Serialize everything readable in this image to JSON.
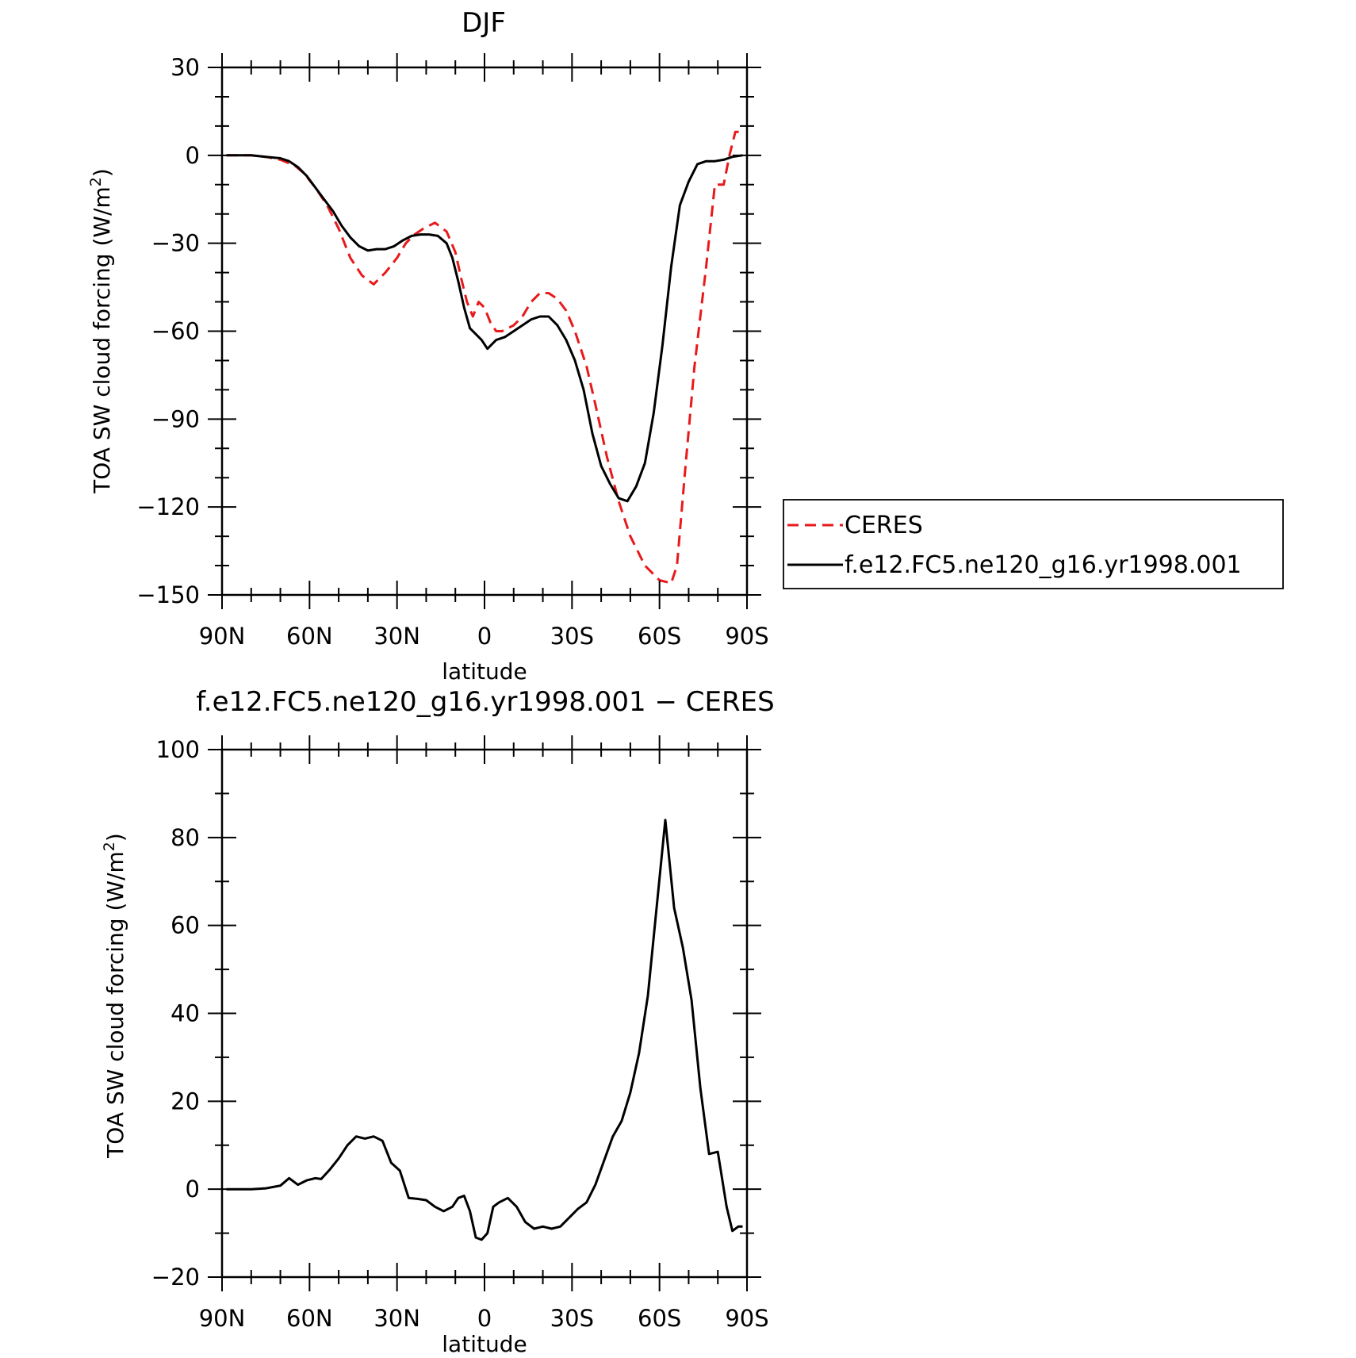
{
  "chart_data": [
    {
      "type": "line",
      "title": "DJF",
      "xlabel": "latitude",
      "ylabel": "TOA SW cloud forcing (W/m",
      "ylabel_superscript": "2",
      "ylabel_close": ")",
      "xlim": [
        90,
        -90
      ],
      "ylim": [
        -150,
        30
      ],
      "x_ticks": [
        {
          "value": 90,
          "label": "90N"
        },
        {
          "value": 60,
          "label": "60N"
        },
        {
          "value": 30,
          "label": "30N"
        },
        {
          "value": 0,
          "label": "0"
        },
        {
          "value": -30,
          "label": "30S"
        },
        {
          "value": -60,
          "label": "60S"
        },
        {
          "value": -90,
          "label": "90S"
        }
      ],
      "y_ticks": [
        {
          "value": 30,
          "label": "30"
        },
        {
          "value": 0,
          "label": "0"
        },
        {
          "value": -30,
          "label": "−30"
        },
        {
          "value": -60,
          "label": "−60"
        },
        {
          "value": -90,
          "label": "−90"
        },
        {
          "value": -120,
          "label": "−120"
        },
        {
          "value": -150,
          "label": "−150"
        }
      ],
      "grid": false,
      "legend_position": "right",
      "series": [
        {
          "name": "CERES",
          "color": "#e8191b",
          "style": "dashed",
          "x": [
            88.5,
            85,
            80,
            75,
            70,
            65,
            62,
            58,
            54,
            50,
            46,
            42,
            38,
            34,
            30,
            27,
            24,
            21,
            17,
            13,
            10,
            8,
            6,
            4,
            2,
            0,
            -2,
            -4,
            -6,
            -8,
            -10,
            -13,
            -16,
            -19,
            -22,
            -25,
            -28,
            -31,
            -35,
            -38,
            -42,
            -46,
            -50,
            -55,
            -60,
            -64,
            -66,
            -69,
            -72,
            -76,
            -79,
            -82,
            -84,
            -86,
            -88.5
          ],
          "y": [
            0,
            0,
            0,
            -0.5,
            -1.5,
            -3.5,
            -6,
            -11,
            -17,
            -25,
            -35,
            -41,
            -44,
            -40,
            -35,
            -30,
            -27,
            -25,
            -23,
            -26,
            -33,
            -42,
            -50,
            -55,
            -50,
            -52,
            -57,
            -60,
            -60,
            -59,
            -58,
            -55,
            -50,
            -47,
            -47,
            -49,
            -53,
            -60,
            -72,
            -85,
            -103,
            -118,
            -130,
            -140,
            -145,
            -146,
            -140,
            -105,
            -72,
            -38,
            -10,
            -10,
            0,
            8,
            8
          ]
        },
        {
          "name": "f.e12.FC5.ne120_g16.yr1998.001",
          "color": "#000000",
          "style": "solid",
          "x": [
            88.5,
            85,
            80,
            75,
            70,
            67,
            64,
            61,
            58,
            55,
            52,
            49,
            46,
            43,
            40,
            37,
            34,
            31,
            28,
            25,
            22,
            19,
            16,
            13,
            11,
            9,
            7,
            5,
            3,
            1,
            -1,
            -4,
            -7,
            -10,
            -13,
            -16,
            -19,
            -22,
            -25,
            -28,
            -31,
            -34,
            -37,
            -40,
            -43,
            -46,
            -49,
            -52,
            -55,
            -58,
            -61,
            -64,
            -67,
            -70,
            -73,
            -76,
            -79,
            -82,
            -85,
            -88.5
          ],
          "y": [
            0,
            0,
            0,
            -0.5,
            -1,
            -2,
            -4,
            -7,
            -11,
            -15,
            -19,
            -24,
            -28,
            -31,
            -32.5,
            -32,
            -32,
            -31,
            -29,
            -27.5,
            -27,
            -27,
            -27.5,
            -30,
            -35,
            -43,
            -52,
            -59,
            -61,
            -63,
            -66,
            -63,
            -62,
            -60,
            -58,
            -56,
            -55,
            -55,
            -58,
            -63,
            -70,
            -80,
            -95,
            -106,
            -112,
            -117,
            -118,
            -113,
            -105,
            -88,
            -65,
            -38,
            -17,
            -9,
            -3,
            -2,
            -2,
            -1.5,
            -0.5,
            0
          ]
        }
      ]
    },
    {
      "type": "line",
      "title": "f.e12.FC5.ne120_g16.yr1998.001 − CERES",
      "xlabel": "latitude",
      "ylabel": "TOA SW cloud forcing (W/m",
      "ylabel_superscript": "2",
      "ylabel_close": ")",
      "xlim": [
        90,
        -90
      ],
      "ylim": [
        -20,
        100
      ],
      "x_ticks": [
        {
          "value": 90,
          "label": "90N"
        },
        {
          "value": 60,
          "label": "60N"
        },
        {
          "value": 30,
          "label": "30N"
        },
        {
          "value": 0,
          "label": "0"
        },
        {
          "value": -30,
          "label": "30S"
        },
        {
          "value": -60,
          "label": "60S"
        },
        {
          "value": -90,
          "label": "90S"
        }
      ],
      "y_ticks": [
        {
          "value": 100,
          "label": "100"
        },
        {
          "value": 80,
          "label": "80"
        },
        {
          "value": 60,
          "label": "60"
        },
        {
          "value": 40,
          "label": "40"
        },
        {
          "value": 20,
          "label": "20"
        },
        {
          "value": 0,
          "label": "0"
        },
        {
          "value": -20,
          "label": "−20"
        }
      ],
      "grid": false,
      "series": [
        {
          "color": "#000000",
          "style": "solid",
          "x": [
            88.5,
            85,
            80,
            75,
            70,
            67,
            64,
            61,
            58,
            56,
            53,
            50,
            47,
            44,
            41,
            38,
            35,
            32,
            29,
            26,
            23,
            20,
            17,
            14,
            11,
            9,
            7,
            5,
            3,
            1,
            -1,
            -3,
            -5,
            -8,
            -11,
            -14,
            -17,
            -20,
            -23,
            -26,
            -29,
            -32,
            -35,
            -38,
            -41,
            -44,
            -47,
            -50,
            -53,
            -56,
            -59,
            -62,
            -65,
            -68,
            -71,
            -74,
            -77,
            -80,
            -83,
            -85,
            -87,
            -88.5
          ],
          "y": [
            0,
            0,
            0,
            0.2,
            0.8,
            2.5,
            1,
            2,
            2.5,
            2.3,
            4.5,
            7,
            10,
            12,
            11.5,
            12,
            11,
            6,
            4.2,
            -2,
            -2.2,
            -2.5,
            -4,
            -5,
            -4,
            -2,
            -1.5,
            -5,
            -11,
            -11.5,
            -10,
            -4,
            -3,
            -2,
            -4,
            -7.5,
            -9,
            -8.5,
            -9,
            -8.5,
            -6.5,
            -4.5,
            -3,
            1,
            6.5,
            12,
            15.5,
            22,
            31,
            44,
            64,
            84,
            64,
            55,
            43,
            23,
            8,
            8.5,
            -4,
            -9.5,
            -8.5,
            -8.5
          ]
        }
      ]
    }
  ]
}
